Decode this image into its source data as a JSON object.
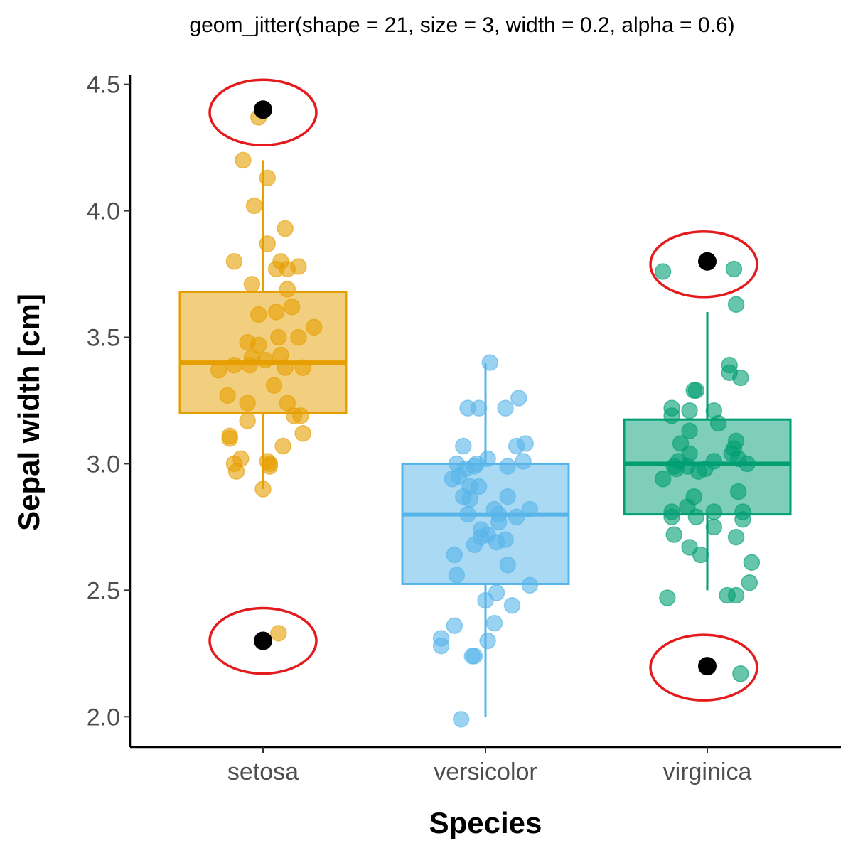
{
  "chart_data": {
    "type": "boxplot-jitter",
    "title": "geom_jitter(shape = 21, size = 3, width = 0.2, alpha = 0.6)",
    "xlabel": "Species",
    "ylabel": "Sepal width [cm]",
    "categories": [
      "setosa",
      "versicolor",
      "virginica"
    ],
    "ylim": [
      1.88,
      4.53
    ],
    "yticks": [
      2.0,
      2.5,
      3.0,
      3.5,
      4.0,
      4.5
    ],
    "ytick_labels": [
      "2.0",
      "2.5",
      "3.0",
      "3.5",
      "4.0",
      "4.5"
    ],
    "grid": false,
    "point_alpha": 0.6,
    "outlier_color": "#000000",
    "highlight_color": "#e41a1c",
    "groups": [
      {
        "name": "setosa",
        "color": "#e69f00",
        "box": {
          "whisker_low": 2.9,
          "q1": 3.2,
          "median": 3.4,
          "q3": 3.68,
          "whisker_high": 4.2
        },
        "outliers": [
          4.4,
          2.3
        ],
        "points": [
          [
            -0.02,
            4.37
          ],
          [
            -0.09,
            4.2
          ],
          [
            0.02,
            4.13
          ],
          [
            -0.04,
            4.02
          ],
          [
            0.1,
            3.93
          ],
          [
            -0.13,
            3.8
          ],
          [
            0.02,
            3.87
          ],
          [
            0.06,
            3.77
          ],
          [
            0.11,
            3.77
          ],
          [
            0.08,
            3.8
          ],
          [
            0.16,
            3.78
          ],
          [
            -0.05,
            3.71
          ],
          [
            0.11,
            3.69
          ],
          [
            0.13,
            3.62
          ],
          [
            0.06,
            3.6
          ],
          [
            -0.02,
            3.59
          ],
          [
            0.23,
            3.54
          ],
          [
            -0.07,
            3.48
          ],
          [
            -0.02,
            3.47
          ],
          [
            0.07,
            3.5
          ],
          [
            0.16,
            3.5
          ],
          [
            -0.05,
            3.42
          ],
          [
            0.01,
            3.41
          ],
          [
            0.08,
            3.43
          ],
          [
            -0.2,
            3.37
          ],
          [
            -0.13,
            3.39
          ],
          [
            -0.06,
            3.39
          ],
          [
            0.1,
            3.38
          ],
          [
            0.18,
            3.38
          ],
          [
            -0.16,
            3.27
          ],
          [
            0.05,
            3.31
          ],
          [
            -0.07,
            3.24
          ],
          [
            0.11,
            3.24
          ],
          [
            -0.07,
            3.17
          ],
          [
            0.14,
            3.19
          ],
          [
            0.17,
            3.19
          ],
          [
            -0.15,
            3.1
          ],
          [
            -0.15,
            3.11
          ],
          [
            0.18,
            3.12
          ],
          [
            0.09,
            3.07
          ],
          [
            -0.1,
            3.02
          ],
          [
            0.02,
            3.01
          ],
          [
            -0.13,
            3.0
          ],
          [
            0.03,
            2.99
          ],
          [
            0.03,
            3.0
          ],
          [
            -0.12,
            2.97
          ],
          [
            0.0,
            2.9
          ],
          [
            0.07,
            2.33
          ]
        ]
      },
      {
        "name": "versicolor",
        "color": "#56b4e9",
        "box": {
          "whisker_low": 2.0,
          "q1": 2.525,
          "median": 2.8,
          "q3": 3.0,
          "whisker_high": 3.4
        },
        "outliers": [],
        "points": [
          [
            0.02,
            3.4
          ],
          [
            -0.08,
            3.22
          ],
          [
            -0.03,
            3.22
          ],
          [
            0.09,
            3.22
          ],
          [
            0.15,
            3.26
          ],
          [
            -0.1,
            3.07
          ],
          [
            0.14,
            3.07
          ],
          [
            0.18,
            3.08
          ],
          [
            -0.13,
            3.0
          ],
          [
            0.01,
            3.02
          ],
          [
            0.17,
            3.01
          ],
          [
            -0.09,
            2.98
          ],
          [
            -0.05,
            2.99
          ],
          [
            -0.04,
            3.0
          ],
          [
            0.1,
            2.99
          ],
          [
            -0.15,
            2.94
          ],
          [
            -0.12,
            2.95
          ],
          [
            -0.07,
            2.91
          ],
          [
            -0.03,
            2.91
          ],
          [
            -0.1,
            2.87
          ],
          [
            -0.07,
            2.86
          ],
          [
            0.1,
            2.87
          ],
          [
            -0.08,
            2.8
          ],
          [
            0.06,
            2.8
          ],
          [
            0.14,
            2.79
          ],
          [
            0.2,
            2.82
          ],
          [
            0.04,
            2.82
          ],
          [
            0.06,
            2.77
          ],
          [
            -0.02,
            2.74
          ],
          [
            0.01,
            2.72
          ],
          [
            0.05,
            2.69
          ],
          [
            -0.02,
            2.71
          ],
          [
            -0.05,
            2.68
          ],
          [
            0.09,
            2.7
          ],
          [
            -0.14,
            2.64
          ],
          [
            0.1,
            2.6
          ],
          [
            -0.13,
            2.56
          ],
          [
            0.2,
            2.52
          ],
          [
            0.05,
            2.49
          ],
          [
            0.0,
            2.46
          ],
          [
            0.12,
            2.44
          ],
          [
            0.04,
            2.37
          ],
          [
            -0.14,
            2.36
          ],
          [
            -0.2,
            2.31
          ],
          [
            -0.2,
            2.28
          ],
          [
            0.01,
            2.3
          ],
          [
            -0.05,
            2.24
          ],
          [
            -0.06,
            2.24
          ],
          [
            -0.11,
            1.99
          ]
        ]
      },
      {
        "name": "virginica",
        "color": "#009e73",
        "box": {
          "whisker_low": 2.5,
          "q1": 2.8,
          "median": 3.0,
          "q3": 3.175,
          "whisker_high": 3.6
        },
        "outliers": [
          3.8,
          2.2
        ],
        "points": [
          [
            -0.2,
            3.76
          ],
          [
            0.12,
            3.77
          ],
          [
            0.13,
            3.63
          ],
          [
            0.1,
            3.39
          ],
          [
            0.1,
            3.36
          ],
          [
            0.15,
            3.34
          ],
          [
            -0.06,
            3.29
          ],
          [
            -0.05,
            3.29
          ],
          [
            -0.16,
            3.22
          ],
          [
            -0.08,
            3.21
          ],
          [
            0.03,
            3.21
          ],
          [
            -0.16,
            3.19
          ],
          [
            0.05,
            3.16
          ],
          [
            -0.08,
            3.13
          ],
          [
            0.13,
            3.09
          ],
          [
            -0.12,
            3.08
          ],
          [
            0.12,
            3.06
          ],
          [
            0.11,
            3.04
          ],
          [
            -0.08,
            3.04
          ],
          [
            -0.13,
            3.01
          ],
          [
            0.03,
            3.01
          ],
          [
            0.14,
            3.02
          ],
          [
            0.18,
            3.0
          ],
          [
            -0.15,
            2.99
          ],
          [
            -0.09,
            2.99
          ],
          [
            -0.01,
            2.98
          ],
          [
            -0.14,
            2.98
          ],
          [
            -0.04,
            2.97
          ],
          [
            -0.2,
            2.94
          ],
          [
            0.14,
            2.89
          ],
          [
            -0.06,
            2.87
          ],
          [
            -0.09,
            2.83
          ],
          [
            -0.16,
            2.81
          ],
          [
            0.03,
            2.81
          ],
          [
            0.16,
            2.81
          ],
          [
            -0.16,
            2.79
          ],
          [
            -0.05,
            2.79
          ],
          [
            0.16,
            2.78
          ],
          [
            0.03,
            2.75
          ],
          [
            0.13,
            2.71
          ],
          [
            -0.15,
            2.72
          ],
          [
            -0.08,
            2.67
          ],
          [
            -0.03,
            2.64
          ],
          [
            0.2,
            2.61
          ],
          [
            0.19,
            2.53
          ],
          [
            -0.18,
            2.47
          ],
          [
            0.13,
            2.48
          ],
          [
            0.09,
            2.48
          ],
          [
            0.15,
            2.17
          ]
        ]
      }
    ]
  }
}
